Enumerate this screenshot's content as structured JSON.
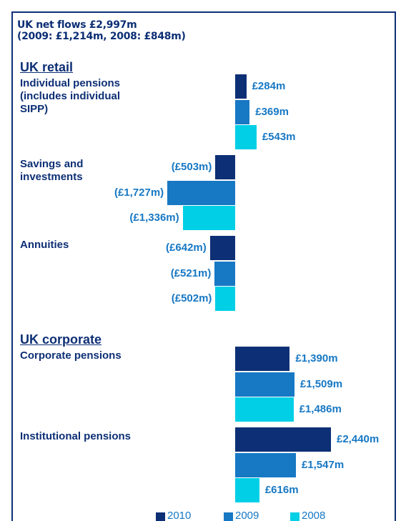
{
  "chart_data": {
    "type": "bar",
    "orientation": "horizontal",
    "title": "UK net flows £2,997m",
    "subtitle": "(2009: £1,214m, 2008: £848m)",
    "sections": [
      {
        "name": "UK retail",
        "categories": [
          "Individual pensions (includes individual SIPP)",
          "Savings and investments",
          "Annuities"
        ]
      },
      {
        "name": "UK corporate",
        "categories": [
          "Corporate pensions",
          "Institutional pensions"
        ]
      }
    ],
    "series": [
      {
        "name": "2010",
        "color": "#0d2f75",
        "values": [
          284,
          -503,
          -642,
          1390,
          2440
        ],
        "value_labels": [
          "£284m",
          "(£503m)",
          "(£642m)",
          "£1,390m",
          "£2,440m"
        ]
      },
      {
        "name": "2009",
        "color": "#1778c4",
        "values": [
          369,
          -1727,
          -521,
          1509,
          1547
        ],
        "value_labels": [
          "£369m",
          "(£1,727m)",
          "(£521m)",
          "£1,509m",
          "£1,547m"
        ]
      },
      {
        "name": "2008",
        "color": "#00cfe6",
        "values": [
          543,
          -1336,
          -502,
          1486,
          616
        ],
        "value_labels": [
          "£543m",
          "(£1,336m)",
          "(£502m)",
          "£1,486m",
          "£616m"
        ]
      }
    ]
  }
}
